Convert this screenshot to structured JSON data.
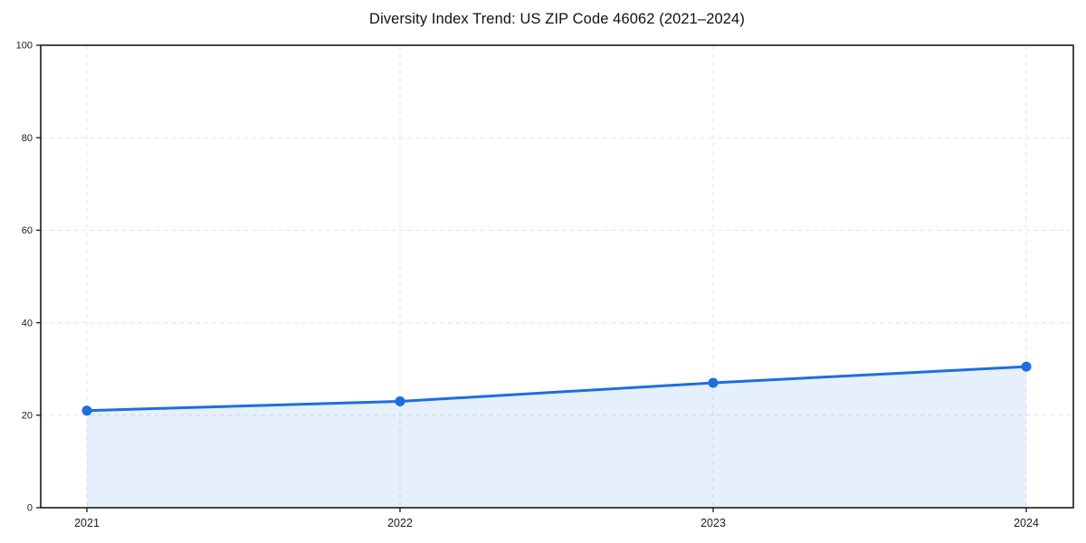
{
  "chart_data": {
    "type": "area",
    "title": "Diversity Index Trend: US ZIP Code 46062 (2021–2024)",
    "series_name": "Diversity Index",
    "categories": [
      "2021",
      "2022",
      "2023",
      "2024"
    ],
    "values": [
      21,
      23,
      27,
      30.5
    ],
    "xlabel": "",
    "ylabel": "",
    "ylim": [
      0,
      100
    ],
    "yticks": [
      0,
      20,
      40,
      60,
      80,
      100
    ],
    "grid": true,
    "grid_style": "dashed",
    "legend": null,
    "colors": {
      "line": "#1d6ee0",
      "marker": "#1d6ee0",
      "fill": "#1d6ee0",
      "fill_opacity": 0.11,
      "gridline": "#e6e6e6",
      "spine": "#1a1a1a",
      "tick_label": "#1c1c1c",
      "background": "#ffffff"
    },
    "marker": "circle",
    "marker_radius": 5.5,
    "line_width": 3
  }
}
